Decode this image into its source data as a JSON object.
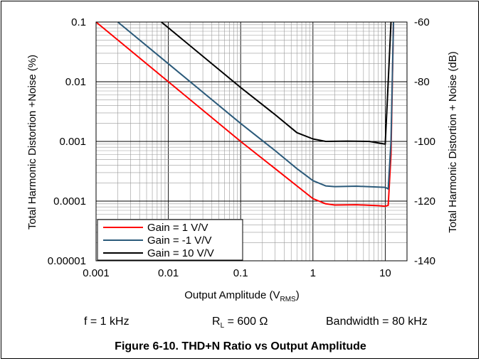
{
  "chart_data": {
    "type": "line",
    "title": "",
    "x_scale": "log",
    "xlim": [
      0.001,
      20
    ],
    "ylim": [
      1e-05,
      0.1
    ],
    "y_scale": "log",
    "y2lim": [
      -140,
      -60
    ],
    "x_ticks": [
      "0.001",
      "0.01",
      "0.1",
      "1",
      "10"
    ],
    "y_ticks": [
      "0.1",
      "0.01",
      "0.001",
      "0.0001",
      "0.00001"
    ],
    "y2_ticks": [
      "-60",
      "-80",
      "-100",
      "-120",
      "-140"
    ],
    "xlabel_main": "Output Amplitude (V",
    "xlabel_sub": "RMS",
    "xlabel_close": ")",
    "ylabel": "Total Harmonic Distortion +Noise (%)",
    "y2label": "Total Harmonic Distortion + Noise (dB)",
    "grid": true,
    "legend_position": "bottom-left",
    "series": [
      {
        "name": "Gain = 1 V/V",
        "color": "#ff0000",
        "points": [
          [
            0.001,
            0.1
          ],
          [
            0.01,
            0.01
          ],
          [
            0.1,
            0.001
          ],
          [
            0.3,
            0.00035
          ],
          [
            0.6,
            0.00018
          ],
          [
            1,
            0.00011
          ],
          [
            1.5,
            9e-05
          ],
          [
            2,
            8.6e-05
          ],
          [
            4,
            8.7e-05
          ],
          [
            8,
            8.4e-05
          ],
          [
            10,
            8.2e-05
          ],
          [
            11,
            8.5e-05
          ],
          [
            12,
            0.0006
          ],
          [
            13,
            0.1
          ]
        ]
      },
      {
        "name": "Gain = -1 V/V",
        "color": "#2b5a7a",
        "points": [
          [
            0.002,
            0.1
          ],
          [
            0.01,
            0.02
          ],
          [
            0.1,
            0.002
          ],
          [
            0.3,
            0.0007
          ],
          [
            0.6,
            0.00035
          ],
          [
            1,
            0.00022
          ],
          [
            1.5,
            0.00018
          ],
          [
            2,
            0.000175
          ],
          [
            4,
            0.000178
          ],
          [
            8,
            0.000172
          ],
          [
            10,
            0.00017
          ],
          [
            11,
            0.00016
          ],
          [
            12,
            0.001
          ],
          [
            13,
            0.1
          ]
        ]
      },
      {
        "name": "Gain = 10 V/V",
        "color": "#000000",
        "points": [
          [
            0.008,
            0.1
          ],
          [
            0.1,
            0.008
          ],
          [
            0.3,
            0.0028
          ],
          [
            0.6,
            0.0014
          ],
          [
            1,
            0.0011
          ],
          [
            1.5,
            0.001
          ],
          [
            3,
            0.00101
          ],
          [
            6,
            0.001
          ],
          [
            9,
            0.00092
          ],
          [
            10,
            0.0009
          ],
          [
            11,
            0.01
          ],
          [
            12,
            0.1
          ]
        ]
      }
    ]
  },
  "conditions": {
    "freq": "f = 1 kHz",
    "load_main": "R",
    "load_sub": "L",
    "load_rest": " = 600 Ω",
    "bandwidth": "Bandwidth = 80 kHz"
  },
  "figure_caption": "Figure 6-10. THD+N Ratio vs Output Amplitude"
}
